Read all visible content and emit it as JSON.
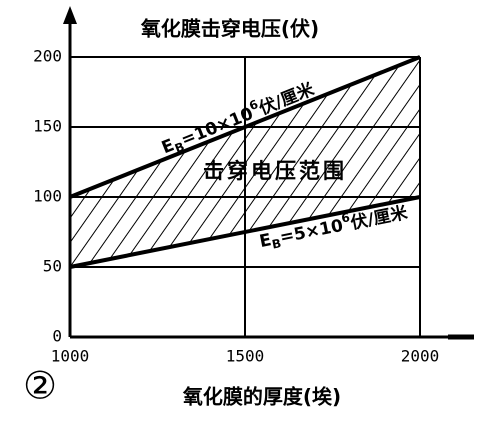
{
  "chart_data": {
    "type": "line",
    "title": "氧化膜击穿电压(伏)",
    "x_label": "氧化膜的厚度(埃)",
    "figure_label": "②",
    "region_label": "击穿电压范围",
    "x": [
      1000,
      2000
    ],
    "series": [
      {
        "name_parts": [
          "E",
          "B",
          "=10×10",
          "6",
          "伏/厘米"
        ],
        "color": "#000000",
        "values": [
          100,
          200
        ]
      },
      {
        "name_parts": [
          "E",
          "B",
          "=5×10",
          "6",
          "伏/厘米"
        ],
        "color": "#000000",
        "values": [
          50,
          100
        ]
      }
    ],
    "fill_between": true,
    "xlim": [
      1000,
      2000
    ],
    "xticks": [
      1000,
      1500,
      2000
    ],
    "ylim": [
      0,
      200
    ],
    "yticks": [
      0,
      50,
      100,
      150,
      200
    ],
    "grid": true
  }
}
